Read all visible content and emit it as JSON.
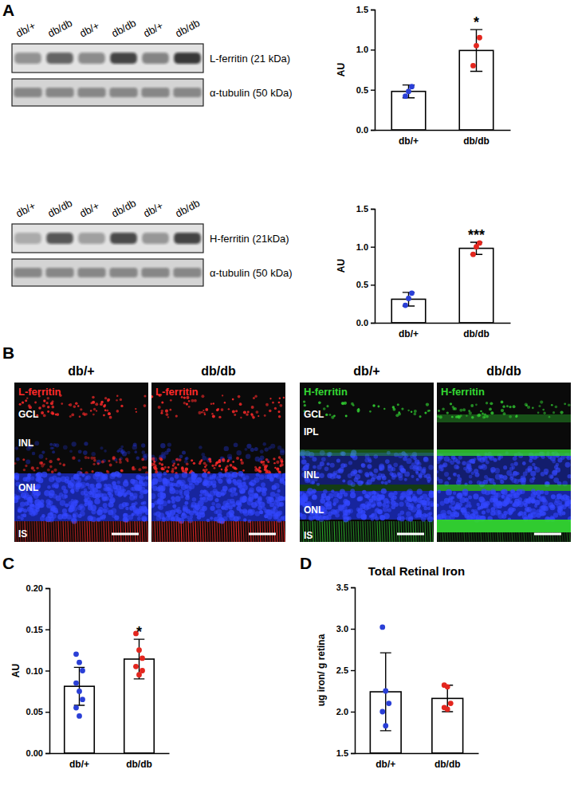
{
  "figure": {
    "panel_labels": [
      "A",
      "B",
      "C",
      "D"
    ]
  },
  "blots": [
    {
      "lanes": [
        "db/+",
        "db/db",
        "db/+",
        "db/db",
        "db/+",
        "db/db"
      ],
      "target": "L-ferritin (21 kDa)",
      "loading": "α-tubulin (50 kDa)"
    },
    {
      "lanes": [
        "db/+",
        "db/db",
        "db/+",
        "db/db",
        "db/+",
        "db/db"
      ],
      "target": "H-ferritin (21kDa)",
      "loading": "α-tubulin (50 kDa)"
    }
  ],
  "micrographs": [
    {
      "title": "db/+",
      "stain": "L-ferritin",
      "color": "#ff2a2a",
      "layers": [
        "GCL",
        "INL",
        "ONL",
        "IS"
      ]
    },
    {
      "title": "db/db",
      "stain": "L-ferritin",
      "color": "#ff2a2a"
    },
    {
      "title": "db/+",
      "stain": "H-ferritin",
      "color": "#33d633",
      "layers": [
        "GCL",
        "IPL",
        "INL",
        "ONL",
        "IS"
      ]
    },
    {
      "title": "db/db",
      "stain": "H-ferritin",
      "color": "#33d633"
    }
  ],
  "chart_data": [
    {
      "type": "bar",
      "categories": [
        "db/+",
        "db/db"
      ],
      "values": [
        0.48,
        0.99
      ],
      "errors": [
        0.08,
        0.26
      ],
      "color": "#ffffff",
      "ylabel": "AU",
      "ylim": [
        0,
        1.5
      ],
      "yticks": [
        {
          "value": 0,
          "label": "0.0"
        },
        {
          "value": 0.5,
          "label": "0.5"
        },
        {
          "value": 1,
          "label": "1.0"
        },
        {
          "value": 1.5,
          "label": "1.5"
        }
      ],
      "points": [
        {
          "color": "#2a3fd6",
          "values": [
            0.42,
            0.48,
            0.54
          ]
        },
        {
          "color": "#e3261e",
          "values": [
            0.8,
            1.05,
            1.15
          ]
        }
      ],
      "annotations": [
        {
          "text": "*",
          "category": "db/db"
        }
      ]
    },
    {
      "type": "bar",
      "categories": [
        "db/+",
        "db/db"
      ],
      "values": [
        0.31,
        0.98
      ],
      "errors": [
        0.09,
        0.08
      ],
      "color": "#ffffff",
      "ylabel": "AU",
      "ylim": [
        0,
        1.5
      ],
      "yticks": [
        {
          "value": 0,
          "label": "0.0"
        },
        {
          "value": 0.5,
          "label": "0.5"
        },
        {
          "value": 1,
          "label": "1.0"
        },
        {
          "value": 1.5,
          "label": "1.5"
        }
      ],
      "points": [
        {
          "color": "#2a3fd6",
          "values": [
            0.23,
            0.32,
            0.39
          ]
        },
        {
          "color": "#e3261e",
          "values": [
            0.9,
            1.0,
            1.05
          ]
        }
      ],
      "annotations": [
        {
          "text": "***",
          "category": "db/db"
        }
      ]
    },
    {
      "type": "bar",
      "categories": [
        "db/+",
        "db/db"
      ],
      "values": [
        0.081,
        0.114
      ],
      "errors": [
        0.023,
        0.024
      ],
      "color": "#ffffff",
      "ylabel": "AU",
      "ylim": [
        0,
        0.2
      ],
      "yticks": [
        {
          "value": 0,
          "label": "0.00"
        },
        0.05,
        {
          "value": 0.1,
          "label": "0.10"
        },
        0.15,
        {
          "value": 0.2,
          "label": "0.20"
        }
      ],
      "points": [
        {
          "color": "#2a3fd6",
          "values": [
            0.12,
            0.11,
            0.1,
            0.085,
            0.075,
            0.065,
            0.055,
            0.045
          ]
        },
        {
          "color": "#e3261e",
          "values": [
            0.145,
            0.125,
            0.115,
            0.105,
            0.095,
            0.1
          ]
        }
      ],
      "annotations": [
        {
          "text": "*",
          "category": "db/db"
        }
      ]
    },
    {
      "type": "bar",
      "title": "Total Retinal Iron",
      "categories": [
        "db/+",
        "db/db"
      ],
      "values": [
        2.24,
        2.16
      ],
      "errors": [
        0.47,
        0.16
      ],
      "color": "#ffffff",
      "ylabel": "ug iron/ g retina",
      "ylim": [
        1.5,
        3.5
      ],
      "yticks": [
        1.5,
        {
          "value": 2,
          "label": "2.0"
        },
        2.5,
        {
          "value": 3,
          "label": "3.0"
        },
        3.5
      ],
      "points": [
        {
          "color": "#2a3fd6",
          "values": [
            3.02,
            2.25,
            2.1,
            2.0,
            1.83
          ]
        },
        {
          "color": "#e3261e",
          "values": [
            2.32,
            2.3,
            2.1,
            2.05,
            2.03
          ]
        }
      ]
    }
  ]
}
